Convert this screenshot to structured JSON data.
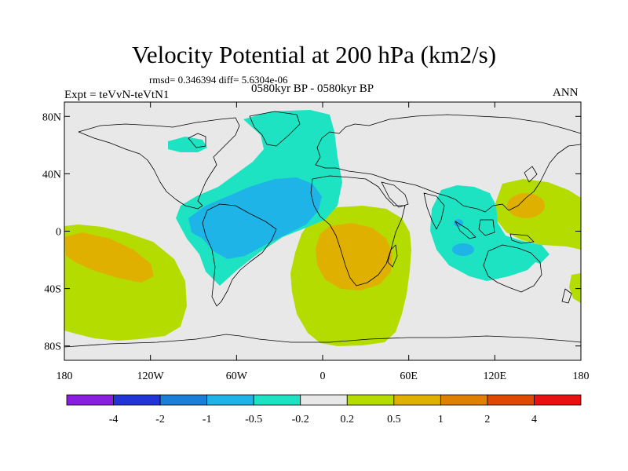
{
  "header": {
    "title": "Velocity Potential at 200 hPa (km2/s)",
    "stats": "rmsd= 0.346394  diff= 5.6304e-06",
    "left_label": "Expt = teVvN-teVtN1",
    "center_label": "0580kyr BP - 0580kyr BP",
    "right_label": "ANN"
  },
  "map": {
    "projection": "cylindrical-equidistant",
    "lon_range": [
      -180,
      180
    ],
    "lat_range": [
      -90,
      90
    ],
    "y_ticks": [
      {
        "label": "80N",
        "lat": 80
      },
      {
        "label": "40N",
        "lat": 40
      },
      {
        "label": "0",
        "lat": 0
      },
      {
        "label": "40S",
        "lat": -40
      },
      {
        "label": "80S",
        "lat": -80
      }
    ],
    "x_ticks": [
      {
        "label": "180",
        "lon": -180
      },
      {
        "label": "120W",
        "lon": -120
      },
      {
        "label": "60W",
        "lon": -60
      },
      {
        "label": "0",
        "lon": 0
      },
      {
        "label": "60E",
        "lon": 60
      },
      {
        "label": "120E",
        "lon": 120
      },
      {
        "label": "180",
        "lon": 180
      }
    ],
    "background_color": "#e8e8e8"
  },
  "colorbar": {
    "labels": [
      "-4",
      "-2",
      "-1",
      "-0.5",
      "-0.2",
      "0.2",
      "0.5",
      "1",
      "2",
      "4"
    ],
    "colors": [
      "#8a1ee0",
      "#2234d8",
      "#1a7fd8",
      "#1fb4e8",
      "#1ee3c3",
      "#e8e8e8",
      "#b5dc00",
      "#e0b000",
      "#e08000",
      "#e04800",
      "#e81010"
    ]
  }
}
